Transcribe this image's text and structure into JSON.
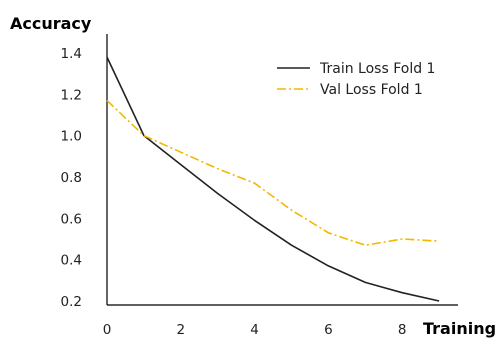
{
  "chart_data": {
    "type": "line",
    "title": "",
    "xlabel": "Training",
    "ylabel": "Accuracy",
    "xlim": [
      0,
      9.5
    ],
    "ylim": [
      0.2,
      1.5
    ],
    "x_ticks": [
      0,
      2,
      4,
      6,
      8
    ],
    "y_ticks": [
      0.2,
      0.4,
      0.6,
      0.8,
      1.0,
      1.2,
      1.4
    ],
    "x_tick_labels": [
      "0",
      "2",
      "4",
      "6",
      "8"
    ],
    "y_tick_labels": [
      "0.2",
      "0.4",
      "0.6",
      "0.8",
      "1.0",
      "1.2",
      "1.4"
    ],
    "grid": false,
    "legend_position": "top-right",
    "x": [
      0,
      1,
      2,
      3,
      4,
      5,
      6,
      7,
      8,
      9
    ],
    "series": [
      {
        "name": "Train Loss Fold 1",
        "values": [
          1.38,
          1.0,
          0.86,
          0.72,
          0.59,
          0.47,
          0.37,
          0.29,
          0.24,
          0.2
        ],
        "color": "#222222",
        "line_style": "solid"
      },
      {
        "name": "Val Loss Fold 1",
        "values": [
          1.17,
          1.0,
          0.92,
          0.84,
          0.77,
          0.64,
          0.53,
          0.47,
          0.5,
          0.49
        ],
        "color": "#f2b800",
        "line_style": "dashdot"
      }
    ]
  }
}
